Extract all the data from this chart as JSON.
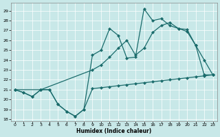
{
  "xlabel": "Humidex (Indice chaleur)",
  "bg_color": "#c8e8e8",
  "line_color": "#1a6b6b",
  "xlim": [
    -0.5,
    23.5
  ],
  "ylim": [
    17.8,
    29.8
  ],
  "yticks": [
    18,
    19,
    20,
    21,
    22,
    23,
    24,
    25,
    26,
    27,
    28,
    29
  ],
  "xticks": [
    0,
    1,
    2,
    3,
    4,
    5,
    6,
    7,
    8,
    9,
    10,
    11,
    12,
    13,
    14,
    15,
    16,
    17,
    18,
    19,
    20,
    21,
    22,
    23
  ],
  "series1_x": [
    0,
    1,
    2,
    3,
    4,
    5,
    6,
    7,
    8,
    9,
    10,
    11,
    12,
    13,
    14,
    15,
    16,
    17,
    18,
    19,
    20,
    21,
    22,
    23
  ],
  "series1_y": [
    21.0,
    20.7,
    20.3,
    21.0,
    21.0,
    19.5,
    18.8,
    18.3,
    19.0,
    21.1,
    21.2,
    21.3,
    21.4,
    21.5,
    21.6,
    21.7,
    21.8,
    21.9,
    22.0,
    22.1,
    22.2,
    22.3,
    22.4,
    22.5
  ],
  "series2_x": [
    0,
    1,
    2,
    3,
    4,
    5,
    6,
    7,
    8,
    9,
    10,
    11,
    12,
    13,
    14,
    15,
    16,
    17,
    18,
    19,
    20,
    21,
    22,
    23
  ],
  "series2_y": [
    21.0,
    20.7,
    20.3,
    21.0,
    21.0,
    19.5,
    18.8,
    18.3,
    19.0,
    24.5,
    25.0,
    27.2,
    26.5,
    24.2,
    24.3,
    29.2,
    28.0,
    28.2,
    27.5,
    27.2,
    27.1,
    25.5,
    24.0,
    22.5
  ],
  "series3_x": [
    0,
    3,
    9,
    10,
    11,
    12,
    13,
    14,
    15,
    16,
    17,
    18,
    19,
    20,
    21,
    22,
    23
  ],
  "series3_y": [
    21.0,
    21.0,
    23.0,
    23.5,
    24.3,
    25.2,
    26.0,
    24.5,
    25.2,
    26.8,
    27.5,
    27.8,
    27.2,
    26.9,
    25.5,
    22.5,
    22.5
  ]
}
